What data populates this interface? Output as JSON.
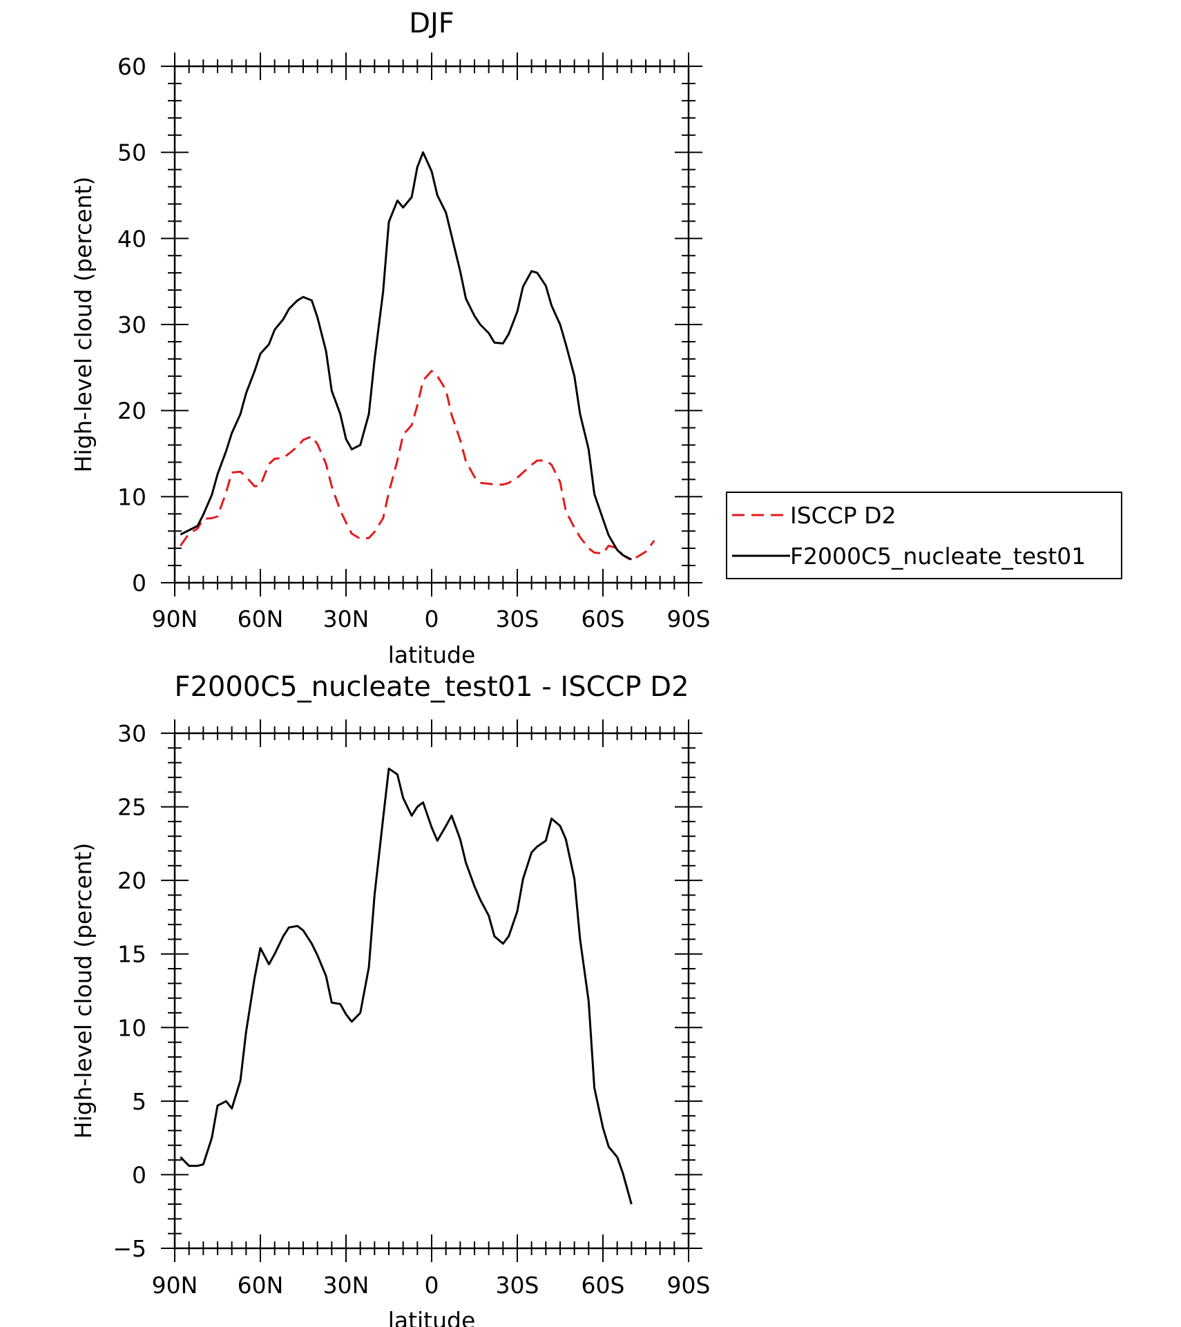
{
  "chart_data": [
    {
      "type": "line",
      "title": "DJF",
      "xlabel": "latitude",
      "ylabel": "High-level cloud (percent)",
      "xlim": [
        90,
        -90
      ],
      "ylim": [
        0,
        60
      ],
      "xticks": [
        {
          "value": 90,
          "label": "90N"
        },
        {
          "value": 60,
          "label": "60N"
        },
        {
          "value": 30,
          "label": "30N"
        },
        {
          "value": 0,
          "label": "0"
        },
        {
          "value": -30,
          "label": "30S"
        },
        {
          "value": -60,
          "label": "60S"
        },
        {
          "value": -90,
          "label": "90S"
        }
      ],
      "yticks": [
        0,
        10,
        20,
        30,
        40,
        50,
        60
      ],
      "legend_position": "right",
      "series": [
        {
          "name": "ISCCP D2",
          "color": "#e31a1c",
          "dash": "dashed",
          "points": [
            [
              88,
              4.3
            ],
            [
              85,
              5.7
            ],
            [
              82,
              6.3
            ],
            [
              80,
              7.4
            ],
            [
              77,
              7.5
            ],
            [
              75,
              7.7
            ],
            [
              72,
              10.5
            ],
            [
              70,
              12.8
            ],
            [
              67,
              12.9
            ],
            [
              65,
              12.3
            ],
            [
              62,
              11.2
            ],
            [
              60,
              11.3
            ],
            [
              57,
              13.8
            ],
            [
              55,
              14.4
            ],
            [
              52,
              14.5
            ],
            [
              50,
              15.0
            ],
            [
              47,
              15.8
            ],
            [
              45,
              16.6
            ],
            [
              42,
              17.0
            ],
            [
              40,
              16.1
            ],
            [
              37,
              13.8
            ],
            [
              35,
              11.2
            ],
            [
              32,
              8.4
            ],
            [
              30,
              7.0
            ],
            [
              28,
              5.7
            ],
            [
              25,
              5.1
            ],
            [
              22,
              5.2
            ],
            [
              20,
              5.9
            ],
            [
              17,
              7.5
            ],
            [
              15,
              10.5
            ],
            [
              12,
              14.2
            ],
            [
              10,
              17.2
            ],
            [
              7,
              18.3
            ],
            [
              5,
              20.6
            ],
            [
              3,
              23.5
            ],
            [
              0,
              24.6
            ],
            [
              -2,
              24.0
            ],
            [
              -5,
              22.4
            ],
            [
              -7,
              19.5
            ],
            [
              -10,
              16.6
            ],
            [
              -12,
              14.1
            ],
            [
              -15,
              12.3
            ],
            [
              -17,
              11.6
            ],
            [
              -20,
              11.5
            ],
            [
              -22,
              11.4
            ],
            [
              -25,
              11.4
            ],
            [
              -27,
              11.6
            ],
            [
              -30,
              12.2
            ],
            [
              -32,
              12.8
            ],
            [
              -35,
              13.7
            ],
            [
              -37,
              14.2
            ],
            [
              -40,
              14.2
            ],
            [
              -42,
              13.7
            ],
            [
              -45,
              11.7
            ],
            [
              -47,
              8.3
            ],
            [
              -50,
              6.4
            ],
            [
              -52,
              5.3
            ],
            [
              -55,
              4.0
            ],
            [
              -57,
              3.5
            ],
            [
              -60,
              3.4
            ],
            [
              -62,
              4.3
            ],
            [
              -65,
              4.0
            ],
            [
              -67,
              3.2
            ],
            [
              -70,
              2.6
            ],
            [
              -72,
              3.0
            ],
            [
              -75,
              3.6
            ],
            [
              -78,
              4.9
            ]
          ]
        },
        {
          "name": "F2000C5_nucleate_test01",
          "color": "#000000",
          "dash": "solid",
          "points": [
            [
              88,
              5.6
            ],
            [
              85,
              6.1
            ],
            [
              82,
              6.6
            ],
            [
              80,
              7.9
            ],
            [
              77,
              10.2
            ],
            [
              75,
              12.6
            ],
            [
              72,
              15.3
            ],
            [
              70,
              17.4
            ],
            [
              67,
              19.6
            ],
            [
              65,
              22.0
            ],
            [
              62,
              24.6
            ],
            [
              60,
              26.6
            ],
            [
              57,
              27.7
            ],
            [
              55,
              29.4
            ],
            [
              52,
              30.6
            ],
            [
              50,
              31.8
            ],
            [
              47,
              32.8
            ],
            [
              45,
              33.2
            ],
            [
              42,
              32.8
            ],
            [
              40,
              30.8
            ],
            [
              37,
              26.9
            ],
            [
              35,
              22.3
            ],
            [
              32,
              19.6
            ],
            [
              30,
              16.7
            ],
            [
              28,
              15.5
            ],
            [
              25,
              16.0
            ],
            [
              22,
              19.6
            ],
            [
              20,
              25.9
            ],
            [
              17,
              33.8
            ],
            [
              15,
              41.9
            ],
            [
              12,
              44.4
            ],
            [
              10,
              43.6
            ],
            [
              7,
              44.8
            ],
            [
              5,
              48.3
            ],
            [
              3,
              50.0
            ],
            [
              0,
              47.8
            ],
            [
              -2,
              45.0
            ],
            [
              -5,
              43.0
            ],
            [
              -7,
              40.3
            ],
            [
              -10,
              36.2
            ],
            [
              -12,
              33.0
            ],
            [
              -15,
              31.0
            ],
            [
              -17,
              30.0
            ],
            [
              -20,
              29.0
            ],
            [
              -22,
              27.9
            ],
            [
              -25,
              27.8
            ],
            [
              -27,
              28.9
            ],
            [
              -30,
              31.5
            ],
            [
              -32,
              34.4
            ],
            [
              -35,
              36.2
            ],
            [
              -37,
              36.0
            ],
            [
              -40,
              34.5
            ],
            [
              -42,
              32.2
            ],
            [
              -45,
              30.0
            ],
            [
              -47,
              27.7
            ],
            [
              -50,
              24.0
            ],
            [
              -52,
              19.6
            ],
            [
              -55,
              15.5
            ],
            [
              -57,
              10.3
            ],
            [
              -60,
              7.4
            ],
            [
              -62,
              5.5
            ],
            [
              -65,
              3.8
            ],
            [
              -67,
              3.2
            ],
            [
              -70,
              2.7
            ]
          ]
        }
      ]
    },
    {
      "type": "line",
      "title": "F2000C5_nucleate_test01 - ISCCP D2",
      "xlabel": "latitude",
      "ylabel": "High-level cloud (percent)",
      "xlim": [
        90,
        -90
      ],
      "ylim": [
        -5,
        30
      ],
      "xticks": [
        {
          "value": 90,
          "label": "90N"
        },
        {
          "value": 60,
          "label": "60N"
        },
        {
          "value": 30,
          "label": "30N"
        },
        {
          "value": 0,
          "label": "0"
        },
        {
          "value": -30,
          "label": "30S"
        },
        {
          "value": -60,
          "label": "60S"
        },
        {
          "value": -90,
          "label": "90S"
        }
      ],
      "yticks": [
        -5,
        0,
        5,
        10,
        15,
        20,
        25,
        30
      ],
      "series": [
        {
          "color": "#000000",
          "dash": "solid",
          "points": [
            [
              88,
              1.2
            ],
            [
              85,
              0.6
            ],
            [
              82,
              0.6
            ],
            [
              80,
              0.7
            ],
            [
              77,
              2.5
            ],
            [
              75,
              4.7
            ],
            [
              72,
              5.0
            ],
            [
              70,
              4.5
            ],
            [
              67,
              6.4
            ],
            [
              65,
              9.7
            ],
            [
              62,
              13.4
            ],
            [
              60,
              15.4
            ],
            [
              57,
              14.3
            ],
            [
              55,
              15.0
            ],
            [
              52,
              16.2
            ],
            [
              50,
              16.8
            ],
            [
              47,
              16.9
            ],
            [
              45,
              16.6
            ],
            [
              42,
              15.7
            ],
            [
              40,
              14.9
            ],
            [
              37,
              13.5
            ],
            [
              35,
              11.7
            ],
            [
              32,
              11.6
            ],
            [
              30,
              10.9
            ],
            [
              28,
              10.4
            ],
            [
              25,
              11.0
            ],
            [
              22,
              14.1
            ],
            [
              20,
              19.0
            ],
            [
              17,
              24.2
            ],
            [
              15,
              27.6
            ],
            [
              12,
              27.2
            ],
            [
              10,
              25.6
            ],
            [
              7,
              24.4
            ],
            [
              5,
              25.0
            ],
            [
              3,
              25.3
            ],
            [
              0,
              23.6
            ],
            [
              -2,
              22.7
            ],
            [
              -5,
              23.7
            ],
            [
              -7,
              24.4
            ],
            [
              -10,
              22.8
            ],
            [
              -12,
              21.2
            ],
            [
              -15,
              19.6
            ],
            [
              -17,
              18.7
            ],
            [
              -20,
              17.6
            ],
            [
              -22,
              16.2
            ],
            [
              -25,
              15.7
            ],
            [
              -27,
              16.2
            ],
            [
              -30,
              17.9
            ],
            [
              -32,
              20.1
            ],
            [
              -35,
              21.9
            ],
            [
              -37,
              22.3
            ],
            [
              -40,
              22.7
            ],
            [
              -42,
              24.2
            ],
            [
              -45,
              23.7
            ],
            [
              -47,
              22.8
            ],
            [
              -50,
              20.1
            ],
            [
              -52,
              16.0
            ],
            [
              -55,
              11.8
            ],
            [
              -57,
              5.9
            ],
            [
              -60,
              3.2
            ],
            [
              -62,
              1.9
            ],
            [
              -65,
              1.2
            ],
            [
              -67,
              0.1
            ],
            [
              -70,
              -2.0
            ]
          ]
        }
      ]
    }
  ]
}
